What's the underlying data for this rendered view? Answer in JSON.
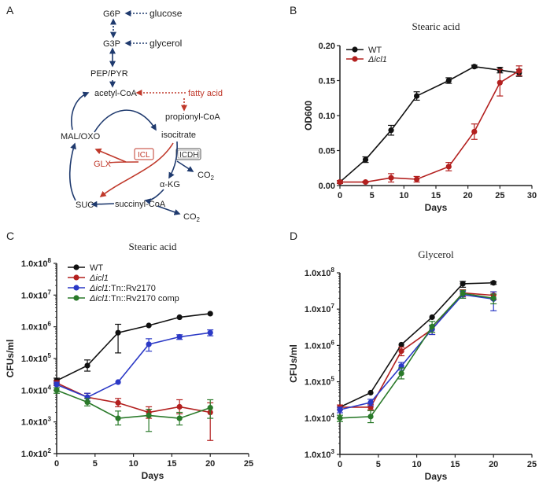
{
  "panel_letters": {
    "a": "A",
    "b": "B",
    "c": "C",
    "d": "D"
  },
  "colors": {
    "black": "#111111",
    "red": "#b3201f",
    "blue": "#2b39c6",
    "green": "#2a7a2a",
    "navy": "#1f3a6e",
    "pathway_red": "#c0392b",
    "gray": "#333333"
  },
  "pathway": {
    "g6p": "G6P",
    "glucose": "glucose",
    "g3p": "G3P",
    "glycerol": "glycerol",
    "pep_pyr": "PEP/PYR",
    "acetyl_coa": "acetyl-CoA",
    "fatty_acid": "fatty acid",
    "propionyl_coa": "propionyl-CoA",
    "isocitrate": "isocitrate",
    "mal_oxo": "MAL/OXO",
    "icl": "ICL",
    "icdh": "ICDH",
    "glx": "GLX",
    "co2": "CO",
    "co2_sub": "2",
    "akg_prefix": "α",
    "akg_suffix": "-KG",
    "suc": "SUC",
    "succinyl_coa": "succinyl-CoA"
  },
  "chart_data": [
    {
      "id": "B",
      "type": "line",
      "title": "Stearic acid",
      "xlabel": "Days",
      "ylabel": "OD600",
      "xlim": [
        0,
        30
      ],
      "ylim": [
        0,
        0.2
      ],
      "yscale": "linear",
      "xticks": [
        0,
        5,
        10,
        15,
        20,
        25,
        30
      ],
      "yticks": [
        0,
        0.05,
        0.1,
        0.15,
        0.2
      ],
      "ytick_labels": [
        "0.00",
        "0.05",
        "0.10",
        "0.15",
        "0.20"
      ],
      "legend_position": "top-left",
      "series": [
        {
          "name": "WT",
          "italic_prefix": "",
          "rest": "WT",
          "color": "#111111",
          "x": [
            0,
            4,
            8,
            12,
            17,
            21,
            25,
            28
          ],
          "y": [
            0.005,
            0.037,
            0.079,
            0.128,
            0.15,
            0.17,
            0.165,
            0.161
          ],
          "err": [
            0.002,
            0.004,
            0.007,
            0.006,
            0.004,
            0.002,
            0.004,
            0.005
          ]
        },
        {
          "name": "Δicl1",
          "italic_prefix": "Δicl1",
          "rest": "",
          "color": "#b3201f",
          "x": [
            0,
            4,
            8,
            12,
            17,
            21,
            25,
            28
          ],
          "y": [
            0.005,
            0.005,
            0.011,
            0.009,
            0.027,
            0.077,
            0.147,
            0.164
          ],
          "err": [
            0.002,
            0.001,
            0.006,
            0.004,
            0.006,
            0.011,
            0.019,
            0.007
          ]
        }
      ]
    },
    {
      "id": "C",
      "type": "line",
      "title": "Stearic acid",
      "xlabel": "Days",
      "ylabel": "CFUs/ml",
      "xlim": [
        0,
        25
      ],
      "ylim": [
        100,
        100000000
      ],
      "yscale": "log",
      "xticks": [
        0,
        5,
        10,
        15,
        20,
        25
      ],
      "yticks": [
        100,
        1000,
        10000,
        100000,
        1000000,
        10000000,
        100000000
      ],
      "ytick_labels": [
        [
          "1.0x10",
          "2"
        ],
        [
          "1.0x10",
          "3"
        ],
        [
          "1.0x10",
          "4"
        ],
        [
          "1.0x10",
          "5"
        ],
        [
          "1.0x10",
          "6"
        ],
        [
          "1.0x10",
          "7"
        ],
        [
          "1.0x10",
          "8"
        ]
      ],
      "legend_position": "top-left",
      "series": [
        {
          "name": "WT",
          "italic_prefix": "",
          "rest": "WT",
          "color": "#111111",
          "x": [
            0,
            4,
            8,
            12,
            16,
            20
          ],
          "y": [
            20000,
            60000,
            650000,
            1100000,
            2000000,
            2600000
          ],
          "err_low": [
            16000,
            40000,
            150000,
            1100000,
            2000000,
            2600000
          ],
          "err_high": [
            24000,
            90000,
            1200000,
            1100000,
            2000000,
            2600000
          ]
        },
        {
          "name": "Δicl1",
          "italic_prefix": "Δicl1",
          "rest": "",
          "color": "#b3201f",
          "x": [
            0,
            4,
            8,
            12,
            16,
            20
          ],
          "y": [
            17000,
            6000,
            4000,
            2000,
            3000,
            2000
          ],
          "err_low": [
            14000,
            4500,
            3000,
            1300,
            1800,
            260
          ],
          "err_high": [
            20000,
            8000,
            5500,
            3000,
            5000,
            4000
          ]
        },
        {
          "name": "Δicl1:Tn::Rv2170",
          "italic_prefix": "Δicl1",
          "rest": ":Tn::Rv2170",
          "color": "#2b39c6",
          "x": [
            0,
            4,
            8,
            12,
            16,
            20
          ],
          "y": [
            15000,
            6000,
            18000,
            280000,
            480000,
            650000
          ],
          "err_low": [
            12000,
            4500,
            18000,
            170000,
            400000,
            520000
          ],
          "err_high": [
            18000,
            8000,
            18000,
            420000,
            560000,
            800000
          ]
        },
        {
          "name": "Δicl1:Tn::Rv2170 comp",
          "italic_prefix": "Δicl1",
          "rest": ":Tn::Rv2170 comp",
          "color": "#2a7a2a",
          "x": [
            0,
            4,
            8,
            12,
            16,
            20
          ],
          "y": [
            10000,
            4200,
            1300,
            1600,
            1300,
            2800
          ],
          "err_low": [
            8000,
            3200,
            800,
            500,
            800,
            1300
          ],
          "err_high": [
            12000,
            5500,
            2200,
            2500,
            2000,
            5000
          ]
        }
      ]
    },
    {
      "id": "D",
      "type": "line",
      "title": "Glycerol",
      "xlabel": "Days",
      "ylabel": "CFUs/ml",
      "xlim": [
        0,
        25
      ],
      "ylim": [
        1000,
        100000000
      ],
      "yscale": "log",
      "xticks": [
        0,
        5,
        10,
        15,
        20,
        25
      ],
      "yticks": [
        1000,
        10000,
        100000,
        1000000,
        10000000,
        100000000
      ],
      "ytick_labels": [
        [
          "1.0x10",
          "3"
        ],
        [
          "1.0x10",
          "4"
        ],
        [
          "1.0x10",
          "5"
        ],
        [
          "1.0x10",
          "6"
        ],
        [
          "1.0x10",
          "7"
        ],
        [
          "1.0x10",
          "8"
        ]
      ],
      "legend_position": "none",
      "series": [
        {
          "name": "WT",
          "color": "#111111",
          "x": [
            0,
            4,
            8,
            12,
            16,
            20
          ],
          "y": [
            20000,
            50000,
            1050000,
            6000000,
            50000000,
            53000000
          ],
          "err_low": [
            20000,
            50000,
            1050000,
            6000000,
            40000000,
            48000000
          ],
          "err_high": [
            20000,
            50000,
            1050000,
            6000000,
            58000000,
            57000000
          ]
        },
        {
          "name": "Δicl1",
          "color": "#b3201f",
          "x": [
            0,
            4,
            8,
            12,
            16,
            20
          ],
          "y": [
            20000,
            20000,
            700000,
            2800000,
            28000000,
            24000000
          ],
          "err_low": [
            17000,
            17000,
            520000,
            2000000,
            22000000,
            18000000
          ],
          "err_high": [
            23000,
            24000,
            900000,
            3600000,
            34000000,
            30000000
          ]
        },
        {
          "name": "Δicl1:Tn::Rv2170",
          "color": "#2b39c6",
          "x": [
            0,
            4,
            8,
            12,
            16,
            20
          ],
          "y": [
            17000,
            27000,
            270000,
            2800000,
            25000000,
            19000000
          ],
          "err_low": [
            14000,
            22000,
            210000,
            2000000,
            20000000,
            9000000
          ],
          "err_high": [
            20000,
            33000,
            340000,
            3600000,
            31000000,
            30000000
          ]
        },
        {
          "name": "Δicl1:Tn::Rv2170 comp",
          "color": "#2a7a2a",
          "x": [
            0,
            4,
            8,
            12,
            16,
            20
          ],
          "y": [
            10000,
            11000,
            170000,
            3300000,
            27000000,
            20000000
          ],
          "err_low": [
            8000,
            7500,
            120000,
            2300000,
            20000000,
            14000000
          ],
          "err_high": [
            12000,
            16000,
            240000,
            4600000,
            33000000,
            26000000
          ]
        }
      ]
    }
  ]
}
